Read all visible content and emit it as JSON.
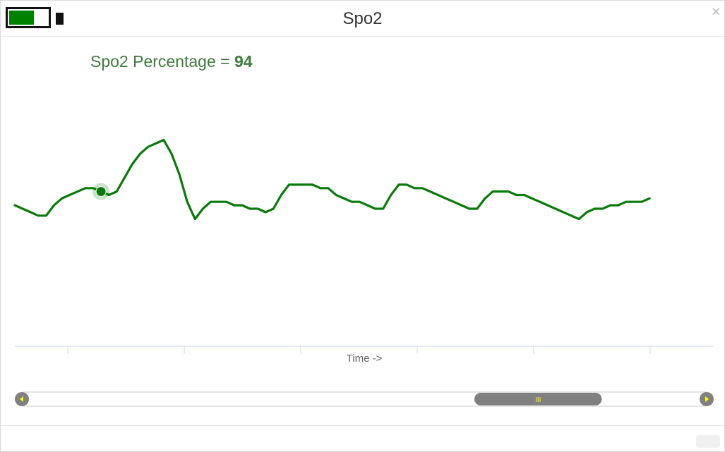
{
  "window": {
    "title": "Spo2",
    "close_label": "×"
  },
  "battery": {
    "level": 0.65,
    "fill_color": "#008000"
  },
  "readout": {
    "label": "Spo2 Percentage = ",
    "value": "94"
  },
  "chart_data": {
    "type": "line",
    "xlabel": "Time ->",
    "ylabel": "",
    "line_color": "#0a7a0a",
    "marker_index": 11,
    "x": [
      0,
      1,
      2,
      3,
      4,
      5,
      6,
      7,
      8,
      9,
      10,
      11,
      12,
      13,
      14,
      15,
      16,
      17,
      18,
      19,
      20,
      21,
      22,
      23,
      24,
      25,
      26,
      27,
      28,
      29,
      30,
      31,
      32,
      33,
      34,
      35,
      36,
      37,
      38,
      39,
      40,
      41,
      42,
      43,
      44,
      45,
      46,
      47,
      48,
      49,
      50,
      51,
      52,
      53,
      54,
      55,
      56,
      57,
      58,
      59,
      60,
      61,
      62,
      63,
      64,
      65,
      66,
      67,
      68,
      69,
      70,
      71,
      72,
      73,
      74,
      75,
      76,
      77,
      78,
      79,
      80,
      81
    ],
    "values": [
      94.1,
      94.0,
      93.9,
      93.8,
      93.8,
      94.1,
      94.3,
      94.4,
      94.5,
      94.6,
      94.6,
      94.5,
      94.4,
      94.5,
      94.9,
      95.3,
      95.6,
      95.8,
      95.9,
      96.0,
      95.6,
      95.0,
      94.2,
      93.7,
      94.0,
      94.2,
      94.2,
      94.2,
      94.1,
      94.1,
      94.0,
      94.0,
      93.9,
      94.0,
      94.4,
      94.7,
      94.7,
      94.7,
      94.7,
      94.6,
      94.6,
      94.4,
      94.3,
      94.2,
      94.2,
      94.1,
      94.0,
      94.0,
      94.4,
      94.7,
      94.7,
      94.6,
      94.6,
      94.5,
      94.4,
      94.3,
      94.2,
      94.1,
      94.0,
      94.0,
      94.3,
      94.5,
      94.5,
      94.5,
      94.4,
      94.4,
      94.3,
      94.2,
      94.1,
      94.0,
      93.9,
      93.8,
      93.7,
      93.9,
      94.0,
      94.0,
      94.1,
      94.1,
      94.2,
      94.2,
      94.2,
      94.3
    ],
    "ylim": [
      90,
      98
    ]
  },
  "scrollbar": {
    "thumb_grip": "III",
    "position": 0.82,
    "thumb_size": 0.19
  }
}
